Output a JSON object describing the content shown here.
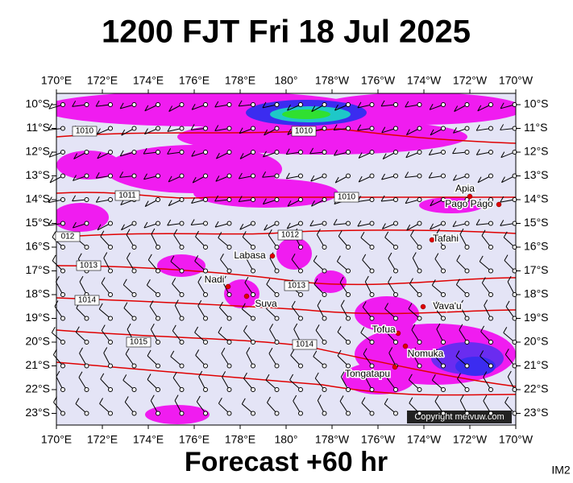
{
  "header": {
    "title": "1200 FJT Fri 18 Jul 2025"
  },
  "map": {
    "lon_labels": [
      "170°E",
      "172°E",
      "174°E",
      "176°E",
      "178°E",
      "180°",
      "178°W",
      "176°W",
      "174°W",
      "172°W",
      "170°W"
    ],
    "lat_labels": [
      "10°S",
      "11°S",
      "12°S",
      "13°S",
      "14°S",
      "15°S",
      "16°S",
      "17°S",
      "18°S",
      "19°S",
      "20°S",
      "21°S",
      "22°S",
      "23°S"
    ],
    "places": [
      "Apia",
      "Pago Pago",
      "Tafahi",
      "Labasa",
      "Nadi",
      "Suva",
      "Vava'u",
      "Tofua",
      "Nomuka",
      "Tongatapu"
    ],
    "isobar_labels": [
      "1010",
      "1010",
      "1011",
      "1010",
      "012",
      "1012",
      "1013",
      "1013",
      "1014",
      "1015",
      "1014"
    ]
  },
  "footer": {
    "forecast": "Forecast +60 hr",
    "copyright": "Copyright metvuw.com",
    "id": "IM2"
  }
}
